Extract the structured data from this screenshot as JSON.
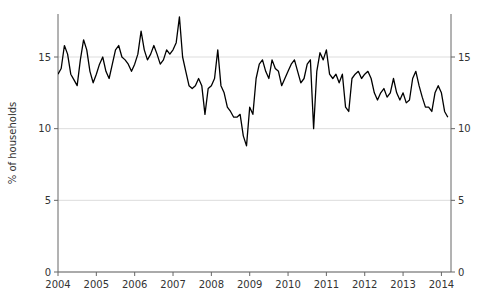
{
  "chart_data": {
    "type": "line",
    "ylabel": "% of households",
    "color": "#000000",
    "grid": true,
    "xlim": [
      2004.0,
      2014.25
    ],
    "xticks": [
      2004,
      2005,
      2006,
      2007,
      2008,
      2009,
      2010,
      2011,
      2012,
      2013,
      2014
    ],
    "ylim": [
      0,
      18
    ],
    "yticks": [
      0,
      5,
      10,
      15
    ],
    "y2lim": [
      0,
      18
    ],
    "y2ticks": [
      0,
      5,
      10,
      15
    ],
    "x": [
      2004.0,
      2004.083,
      2004.167,
      2004.25,
      2004.333,
      2004.417,
      2004.5,
      2004.583,
      2004.667,
      2004.75,
      2004.833,
      2004.917,
      2005.0,
      2005.083,
      2005.167,
      2005.25,
      2005.333,
      2005.417,
      2005.5,
      2005.583,
      2005.667,
      2005.75,
      2005.833,
      2005.917,
      2006.0,
      2006.083,
      2006.167,
      2006.25,
      2006.333,
      2006.417,
      2006.5,
      2006.583,
      2006.667,
      2006.75,
      2006.833,
      2006.917,
      2007.0,
      2007.083,
      2007.167,
      2007.25,
      2007.333,
      2007.417,
      2007.5,
      2007.583,
      2007.667,
      2007.75,
      2007.833,
      2007.917,
      2008.0,
      2008.083,
      2008.167,
      2008.25,
      2008.333,
      2008.417,
      2008.5,
      2008.583,
      2008.667,
      2008.75,
      2008.833,
      2008.917,
      2009.0,
      2009.083,
      2009.167,
      2009.25,
      2009.333,
      2009.417,
      2009.5,
      2009.583,
      2009.667,
      2009.75,
      2009.833,
      2009.917,
      2010.0,
      2010.083,
      2010.167,
      2010.25,
      2010.333,
      2010.417,
      2010.5,
      2010.583,
      2010.667,
      2010.75,
      2010.833,
      2010.917,
      2011.0,
      2011.083,
      2011.167,
      2011.25,
      2011.333,
      2011.417,
      2011.5,
      2011.583,
      2011.667,
      2011.75,
      2011.833,
      2011.917,
      2012.0,
      2012.083,
      2012.167,
      2012.25,
      2012.333,
      2012.417,
      2012.5,
      2012.583,
      2012.667,
      2012.75,
      2012.833,
      2012.917,
      2013.0,
      2013.083,
      2013.167,
      2013.25,
      2013.333,
      2013.417,
      2013.5,
      2013.583,
      2013.667,
      2013.75,
      2013.833,
      2013.917,
      2014.0,
      2014.083,
      2014.167
    ],
    "values": [
      13.8,
      14.2,
      15.8,
      15.2,
      13.8,
      13.4,
      13.0,
      14.8,
      16.2,
      15.5,
      14.0,
      13.2,
      13.8,
      14.5,
      15.0,
      14.0,
      13.5,
      14.5,
      15.5,
      15.8,
      15.0,
      14.8,
      14.5,
      14.0,
      14.5,
      15.2,
      16.8,
      15.5,
      14.8,
      15.2,
      15.8,
      15.2,
      14.5,
      14.8,
      15.5,
      15.2,
      15.5,
      16.0,
      17.8,
      15.0,
      14.0,
      13.0,
      12.8,
      13.0,
      13.5,
      13.0,
      11.0,
      12.8,
      13.0,
      13.5,
      15.5,
      13.0,
      12.5,
      11.5,
      11.2,
      10.8,
      10.8,
      11.0,
      9.5,
      8.8,
      11.5,
      11.0,
      13.5,
      14.5,
      14.8,
      14.0,
      13.5,
      14.8,
      14.2,
      14.0,
      13.0,
      13.5,
      14.0,
      14.5,
      14.8,
      14.0,
      13.2,
      13.5,
      14.5,
      14.8,
      10.0,
      14.0,
      15.3,
      14.8,
      15.5,
      13.8,
      13.5,
      13.8,
      13.2,
      13.8,
      11.5,
      11.2,
      13.5,
      13.8,
      14.0,
      13.5,
      13.8,
      14.0,
      13.5,
      12.5,
      12.0,
      12.5,
      12.8,
      12.2,
      12.5,
      13.5,
      12.5,
      12.0,
      12.5,
      11.8,
      12.0,
      13.5,
      14.0,
      13.0,
      12.2,
      11.5,
      11.5,
      11.2,
      12.5,
      13.0,
      12.5,
      11.2,
      10.8
    ]
  }
}
